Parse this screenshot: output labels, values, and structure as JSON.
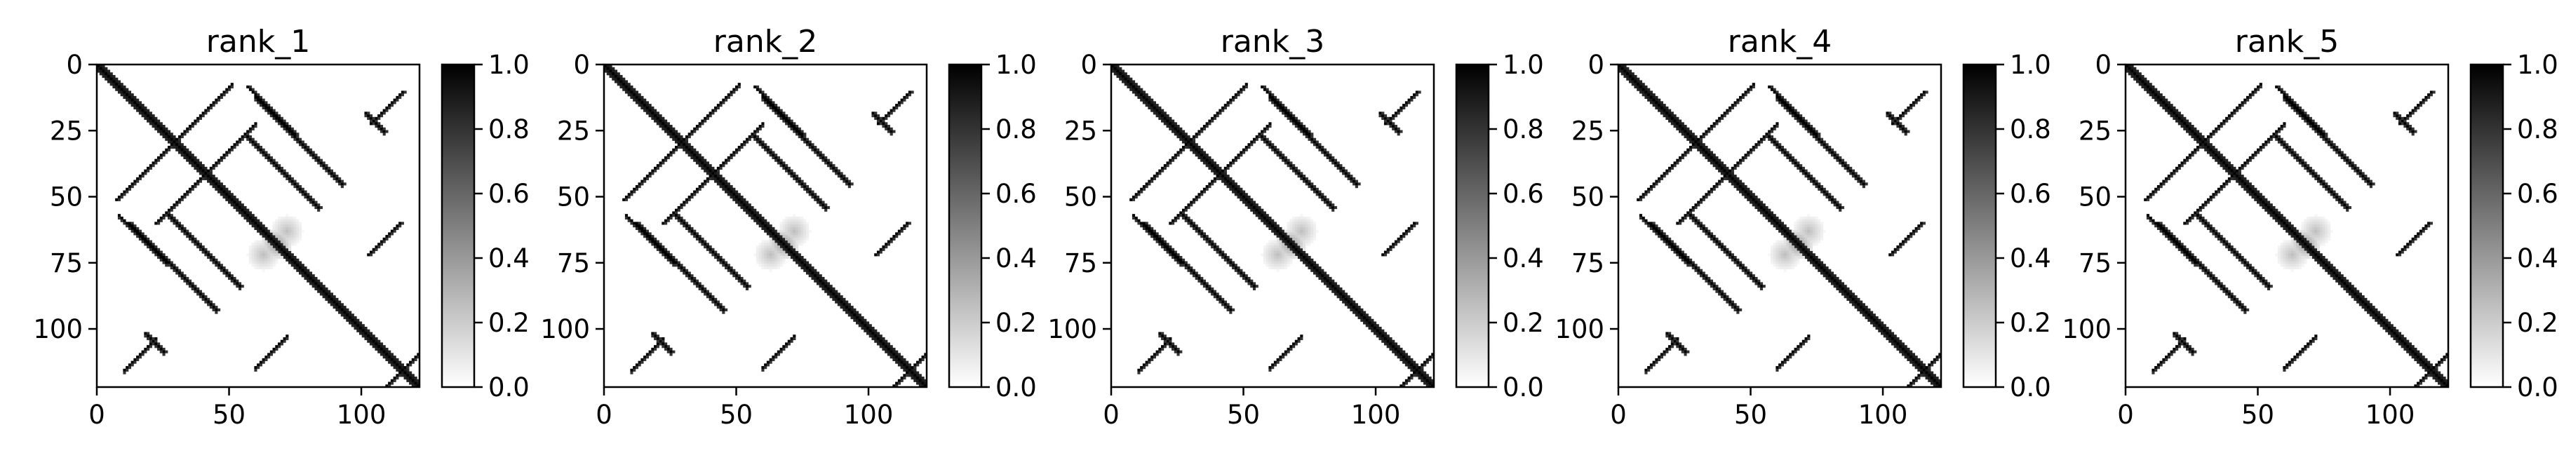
{
  "chart_data": [
    {
      "type": "heatmap",
      "title": "rank_1",
      "matrix_size": 123,
      "xticks": [
        0,
        50,
        100
      ],
      "yticks": [
        0,
        25,
        50,
        75,
        100
      ],
      "xlim": [
        0,
        122
      ],
      "ylim": [
        122,
        0
      ],
      "colorbar": {
        "range": [
          0.0,
          1.0
        ],
        "ticks": [
          "0.0",
          "0.2",
          "0.4",
          "0.6",
          "0.8",
          "1.0"
        ]
      },
      "colormap": "Greys",
      "structure": {
        "diagonal": [
          0,
          122
        ],
        "antidiagonals": [
          {
            "from": [
              28,
              30
            ],
            "to": [
              7,
              51
            ]
          },
          {
            "from": [
              40,
              42
            ],
            "to": [
              22,
              60
            ]
          },
          {
            "from": [
              57,
              8
            ],
            "to": [
              75,
              26
            ]
          },
          {
            "from": [
              115,
              60
            ],
            "to": [
              103,
              72
            ]
          },
          {
            "from": [
              116,
              10
            ],
            "to": [
              104,
              22
            ]
          },
          {
            "from": [
              122,
              110
            ],
            "to": [
              110,
              122
            ]
          }
        ],
        "parallels": [
          {
            "from": [
              12,
              60
            ],
            "to": [
              45,
              93
            ]
          },
          {
            "from": [
              26,
              56
            ],
            "to": [
              54,
              84
            ]
          },
          {
            "from": [
              60,
              12
            ],
            "to": [
              93,
              45
            ]
          },
          {
            "from": [
              56,
              26
            ],
            "to": [
              84,
              54
            ]
          },
          {
            "from": [
              18,
              102
            ],
            "to": [
              25,
              109
            ]
          },
          {
            "from": [
              102,
              18
            ],
            "to": [
              109,
              25
            ]
          }
        ],
        "blobs": [
          {
            "center": [
              68,
              68
            ],
            "value": 0.4
          },
          {
            "center": [
              63,
              72
            ],
            "value": 0.25
          },
          {
            "center": [
              72,
              63
            ],
            "value": 0.25
          }
        ]
      }
    },
    {
      "type": "heatmap",
      "title": "rank_2",
      "matrix_size": 123,
      "xticks": [
        0,
        50,
        100
      ],
      "yticks": [
        0,
        25,
        50,
        75,
        100
      ],
      "xlim": [
        0,
        122
      ],
      "ylim": [
        122,
        0
      ],
      "colorbar": {
        "range": [
          0.0,
          1.0
        ],
        "ticks": [
          "0.0",
          "0.2",
          "0.4",
          "0.6",
          "0.8",
          "1.0"
        ]
      },
      "colormap": "Greys",
      "structure": {
        "diagonal": [
          0,
          122
        ],
        "antidiagonals": [
          {
            "from": [
              28,
              30
            ],
            "to": [
              7,
              51
            ]
          },
          {
            "from": [
              40,
              42
            ],
            "to": [
              22,
              60
            ]
          },
          {
            "from": [
              57,
              8
            ],
            "to": [
              75,
              26
            ]
          },
          {
            "from": [
              115,
              60
            ],
            "to": [
              103,
              72
            ]
          },
          {
            "from": [
              116,
              10
            ],
            "to": [
              104,
              22
            ]
          },
          {
            "from": [
              122,
              110
            ],
            "to": [
              110,
              122
            ]
          }
        ],
        "parallels": [
          {
            "from": [
              12,
              60
            ],
            "to": [
              45,
              93
            ]
          },
          {
            "from": [
              26,
              56
            ],
            "to": [
              54,
              84
            ]
          },
          {
            "from": [
              60,
              12
            ],
            "to": [
              93,
              45
            ]
          },
          {
            "from": [
              56,
              26
            ],
            "to": [
              84,
              54
            ]
          },
          {
            "from": [
              18,
              102
            ],
            "to": [
              25,
              109
            ]
          },
          {
            "from": [
              102,
              18
            ],
            "to": [
              109,
              25
            ]
          }
        ],
        "blobs": [
          {
            "center": [
              68,
              68
            ],
            "value": 0.4
          },
          {
            "center": [
              63,
              72
            ],
            "value": 0.25
          },
          {
            "center": [
              72,
              63
            ],
            "value": 0.25
          }
        ]
      }
    },
    {
      "type": "heatmap",
      "title": "rank_3",
      "matrix_size": 123,
      "xticks": [
        0,
        50,
        100
      ],
      "yticks": [
        0,
        25,
        50,
        75,
        100
      ],
      "xlim": [
        0,
        122
      ],
      "ylim": [
        122,
        0
      ],
      "colorbar": {
        "range": [
          0.0,
          1.0
        ],
        "ticks": [
          "0.0",
          "0.2",
          "0.4",
          "0.6",
          "0.8",
          "1.0"
        ]
      },
      "colormap": "Greys",
      "structure": {
        "diagonal": [
          0,
          122
        ],
        "antidiagonals": [
          {
            "from": [
              28,
              30
            ],
            "to": [
              7,
              51
            ]
          },
          {
            "from": [
              40,
              42
            ],
            "to": [
              22,
              60
            ]
          },
          {
            "from": [
              57,
              8
            ],
            "to": [
              75,
              26
            ]
          },
          {
            "from": [
              115,
              60
            ],
            "to": [
              103,
              72
            ]
          },
          {
            "from": [
              116,
              10
            ],
            "to": [
              104,
              22
            ]
          },
          {
            "from": [
              122,
              110
            ],
            "to": [
              110,
              122
            ]
          }
        ],
        "parallels": [
          {
            "from": [
              12,
              60
            ],
            "to": [
              45,
              93
            ]
          },
          {
            "from": [
              26,
              56
            ],
            "to": [
              54,
              84
            ]
          },
          {
            "from": [
              60,
              12
            ],
            "to": [
              93,
              45
            ]
          },
          {
            "from": [
              56,
              26
            ],
            "to": [
              84,
              54
            ]
          },
          {
            "from": [
              18,
              102
            ],
            "to": [
              25,
              109
            ]
          },
          {
            "from": [
              102,
              18
            ],
            "to": [
              109,
              25
            ]
          }
        ],
        "blobs": [
          {
            "center": [
              68,
              68
            ],
            "value": 0.4
          },
          {
            "center": [
              63,
              72
            ],
            "value": 0.25
          },
          {
            "center": [
              72,
              63
            ],
            "value": 0.25
          }
        ]
      }
    },
    {
      "type": "heatmap",
      "title": "rank_4",
      "matrix_size": 123,
      "xticks": [
        0,
        50,
        100
      ],
      "yticks": [
        0,
        25,
        50,
        75,
        100
      ],
      "xlim": [
        0,
        122
      ],
      "ylim": [
        122,
        0
      ],
      "colorbar": {
        "range": [
          0.0,
          1.0
        ],
        "ticks": [
          "0.0",
          "0.2",
          "0.4",
          "0.6",
          "0.8",
          "1.0"
        ]
      },
      "colormap": "Greys",
      "structure": {
        "diagonal": [
          0,
          122
        ],
        "antidiagonals": [
          {
            "from": [
              28,
              30
            ],
            "to": [
              7,
              51
            ]
          },
          {
            "from": [
              40,
              42
            ],
            "to": [
              22,
              60
            ]
          },
          {
            "from": [
              57,
              8
            ],
            "to": [
              75,
              26
            ]
          },
          {
            "from": [
              115,
              60
            ],
            "to": [
              103,
              72
            ]
          },
          {
            "from": [
              116,
              10
            ],
            "to": [
              104,
              22
            ]
          },
          {
            "from": [
              122,
              110
            ],
            "to": [
              110,
              122
            ]
          }
        ],
        "parallels": [
          {
            "from": [
              12,
              60
            ],
            "to": [
              45,
              93
            ]
          },
          {
            "from": [
              26,
              56
            ],
            "to": [
              54,
              84
            ]
          },
          {
            "from": [
              60,
              12
            ],
            "to": [
              93,
              45
            ]
          },
          {
            "from": [
              56,
              26
            ],
            "to": [
              84,
              54
            ]
          },
          {
            "from": [
              18,
              102
            ],
            "to": [
              25,
              109
            ]
          },
          {
            "from": [
              102,
              18
            ],
            "to": [
              109,
              25
            ]
          }
        ],
        "blobs": [
          {
            "center": [
              68,
              68
            ],
            "value": 0.4
          },
          {
            "center": [
              63,
              72
            ],
            "value": 0.25
          },
          {
            "center": [
              72,
              63
            ],
            "value": 0.25
          }
        ]
      }
    },
    {
      "type": "heatmap",
      "title": "rank_5",
      "matrix_size": 123,
      "xticks": [
        0,
        50,
        100
      ],
      "yticks": [
        0,
        25,
        50,
        75,
        100
      ],
      "xlim": [
        0,
        122
      ],
      "ylim": [
        122,
        0
      ],
      "colorbar": {
        "range": [
          0.0,
          1.0
        ],
        "ticks": [
          "0.0",
          "0.2",
          "0.4",
          "0.6",
          "0.8",
          "1.0"
        ]
      },
      "colormap": "Greys",
      "structure": {
        "diagonal": [
          0,
          122
        ],
        "antidiagonals": [
          {
            "from": [
              28,
              30
            ],
            "to": [
              7,
              51
            ]
          },
          {
            "from": [
              40,
              42
            ],
            "to": [
              22,
              60
            ]
          },
          {
            "from": [
              57,
              8
            ],
            "to": [
              75,
              26
            ]
          },
          {
            "from": [
              115,
              60
            ],
            "to": [
              103,
              72
            ]
          },
          {
            "from": [
              116,
              10
            ],
            "to": [
              104,
              22
            ]
          },
          {
            "from": [
              122,
              110
            ],
            "to": [
              110,
              122
            ]
          }
        ],
        "parallels": [
          {
            "from": [
              12,
              60
            ],
            "to": [
              45,
              93
            ]
          },
          {
            "from": [
              26,
              56
            ],
            "to": [
              54,
              84
            ]
          },
          {
            "from": [
              60,
              12
            ],
            "to": [
              93,
              45
            ]
          },
          {
            "from": [
              56,
              26
            ],
            "to": [
              84,
              54
            ]
          },
          {
            "from": [
              18,
              102
            ],
            "to": [
              25,
              109
            ]
          },
          {
            "from": [
              102,
              18
            ],
            "to": [
              109,
              25
            ]
          }
        ],
        "blobs": [
          {
            "center": [
              68,
              68
            ],
            "value": 0.4
          },
          {
            "center": [
              63,
              72
            ],
            "value": 0.25
          },
          {
            "center": [
              72,
              63
            ],
            "value": 0.25
          }
        ]
      }
    }
  ]
}
